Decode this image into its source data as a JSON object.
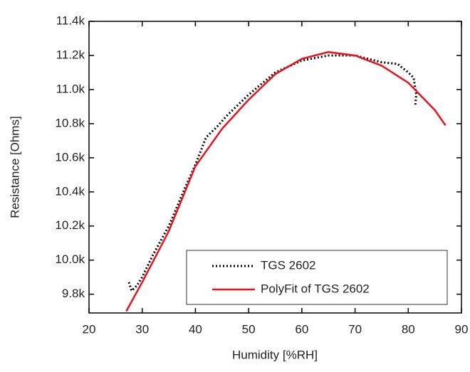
{
  "chart_data": {
    "type": "line",
    "x_label": "Humidity [%RH]",
    "y_label": "Resistance [Ohms]",
    "xlim": [
      20,
      90
    ],
    "xticks": [
      20,
      30,
      40,
      50,
      60,
      70,
      80,
      90
    ],
    "ylim": [
      9690,
      11400
    ],
    "yticks": [
      {
        "value": 9800,
        "label": "9.8k"
      },
      {
        "value": 10000,
        "label": "10.0k"
      },
      {
        "value": 10200,
        "label": "10.2k"
      },
      {
        "value": 10400,
        "label": "10.4k"
      },
      {
        "value": 10600,
        "label": "10.6k"
      },
      {
        "value": 10800,
        "label": "10.8k"
      },
      {
        "value": 11000,
        "label": "11.0k"
      },
      {
        "value": 11200,
        "label": "11.2k"
      },
      {
        "value": 11400,
        "label": "11.4k"
      }
    ],
    "legend": "lower right",
    "series": [
      {
        "name": "TGS 2602",
        "color": "#000000",
        "style": "dotted",
        "x": [
          27.5,
          28,
          29,
          30,
          32,
          35,
          38,
          40,
          42,
          44,
          46,
          50,
          55,
          60,
          65,
          70,
          75,
          78,
          80,
          81,
          81.5,
          81.3
        ],
        "values": [
          9870,
          9820,
          9850,
          9900,
          10030,
          10200,
          10420,
          10560,
          10720,
          10780,
          10850,
          10970,
          11100,
          11170,
          11200,
          11200,
          11160,
          11150,
          11100,
          11070,
          10970,
          10900
        ]
      },
      {
        "name": "PolyFit of TGS 2602",
        "color": "#e8141b",
        "style": "solid",
        "x": [
          27,
          30,
          35,
          40,
          45,
          50,
          55,
          60,
          65,
          70,
          75,
          80,
          85,
          87
        ],
        "values": [
          9700,
          9870,
          10170,
          10550,
          10770,
          10940,
          11090,
          11180,
          11220,
          11200,
          11140,
          11040,
          10880,
          10790
        ]
      }
    ]
  }
}
